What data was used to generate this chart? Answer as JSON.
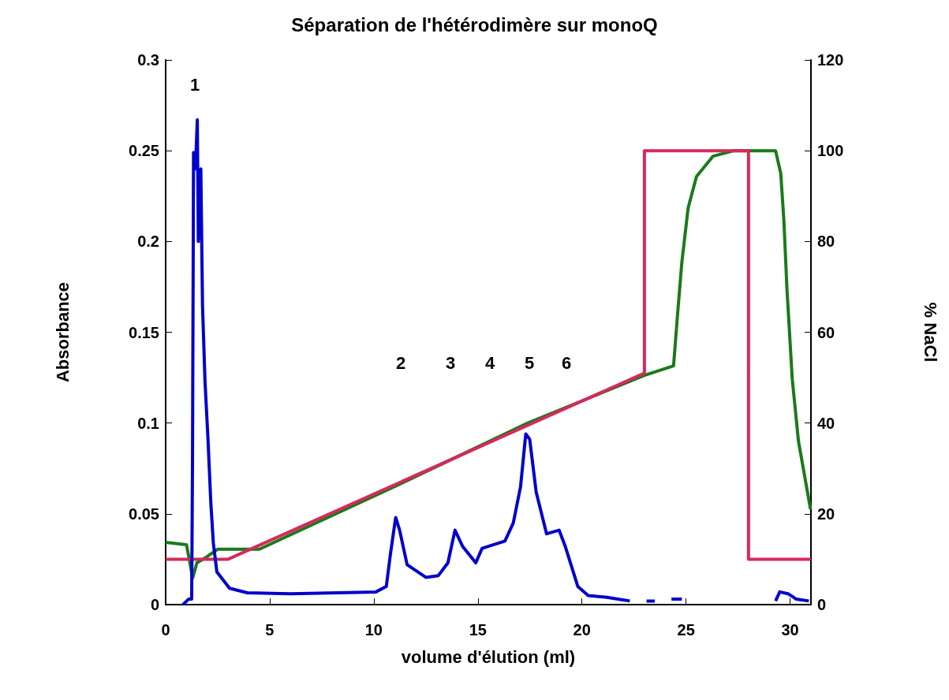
{
  "chart_data": {
    "type": "line",
    "title": "Séparation de l'hétérodimère sur monoQ",
    "xlabel": "volume d'élution (ml)",
    "ylabel": "Absorbance",
    "y2label": "% NaCl",
    "xlim": [
      0,
      31
    ],
    "xticks": [
      0,
      5,
      10,
      15,
      20,
      25,
      30
    ],
    "ylim": [
      0,
      0.3
    ],
    "yticks": [
      0,
      0.05,
      0.1,
      0.15,
      0.2,
      0.25,
      0.3
    ],
    "y2lim": [
      0,
      120
    ],
    "y2ticks": [
      0,
      20,
      40,
      60,
      80,
      100,
      120
    ],
    "marker": "none",
    "series": [
      {
        "color": "#0000cc",
        "x": [
          0.83,
          1.1,
          1.25,
          1.29,
          1.34,
          1.43,
          1.52,
          1.57,
          1.69,
          1.77,
          1.89,
          2.03,
          2.17,
          2.29,
          2.46,
          3.07,
          3.92,
          6,
          10.1,
          10.6,
          10.8,
          11.05,
          11.24,
          11.6,
          12.5,
          13.1,
          13.56,
          13.9,
          14.27,
          14.9,
          15.2,
          16.3,
          16.7,
          17.05,
          17.3,
          17.49,
          17.8,
          18.3,
          18.9,
          19.2,
          19.8,
          20.3,
          21.2,
          22.3,
          22.5,
          23.1,
          23.5,
          23.6,
          24.3,
          24.8,
          25.0,
          29.3,
          29.5,
          29.9,
          30.3,
          30.9
        ],
        "values": [
          0,
          0.003,
          0.003,
          0.079,
          0.249,
          0.24,
          0.267,
          0.2,
          0.24,
          0.165,
          0.123,
          0.092,
          0.056,
          0.034,
          0.018,
          0.009,
          0.0065,
          0.006,
          0.007,
          0.01,
          0.028,
          0.048,
          0.041,
          0.022,
          0.015,
          0.016,
          0.023,
          0.041,
          0.032,
          0.023,
          0.031,
          0.035,
          0.045,
          0.065,
          0.094,
          0.091,
          0.062,
          0.039,
          0.041,
          0.032,
          0.01,
          0.005,
          0.004,
          0.002,
          null,
          0.002,
          0.002,
          null,
          0.003,
          0.003,
          null,
          0.002,
          0.007,
          0.006,
          0.003,
          0.002
        ]
      },
      {
        "color": "#d42a5c",
        "axis": "y2",
        "x": [
          0,
          3,
          23,
          23,
          28,
          28,
          31
        ],
        "values": [
          10,
          10,
          51,
          100,
          100,
          10,
          10
        ]
      },
      {
        "color": "#1a7a1a",
        "axis": "y2",
        "x": [
          0,
          1.0,
          1.3,
          1.5,
          2.0,
          2.5,
          4.5,
          11,
          17.4,
          23,
          24.4,
          24.6,
          24.8,
          25.1,
          25.5,
          26.3,
          27.3,
          29.3,
          29.55,
          29.7,
          29.85,
          30.1,
          30.4,
          30.98
        ],
        "values": [
          13.7,
          13.2,
          5.9,
          9.2,
          10.6,
          12.2,
          12.2,
          26,
          40,
          50.5,
          52.6,
          64.4,
          75.5,
          87.4,
          94.3,
          98.8,
          100,
          100,
          95,
          84.6,
          69.3,
          49.8,
          36,
          21
        ]
      }
    ],
    "annotations": [
      "1",
      "2",
      "3",
      "4",
      "5",
      "6"
    ]
  }
}
